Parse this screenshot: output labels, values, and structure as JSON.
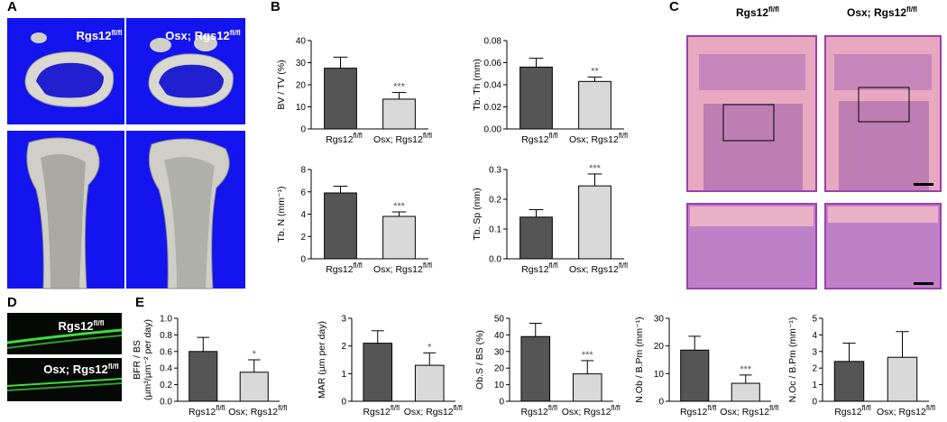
{
  "panels": {
    "A": {
      "letter": "A",
      "labels": [
        {
          "text": "Rgs12",
          "sup": "fl/fl"
        },
        {
          "text": "Osx; Rgs12",
          "sup": "fl/fl"
        }
      ]
    },
    "B": {
      "letter": "B"
    },
    "C": {
      "letter": "C",
      "labels": [
        {
          "text": "Rgs12",
          "sup": "fl/fl"
        },
        {
          "text": "Osx; Rgs12",
          "sup": "fl/fl"
        }
      ]
    },
    "D": {
      "letter": "D",
      "labels": [
        {
          "text": "Rgs12",
          "sup": "fl/fl"
        },
        {
          "text": "Osx; Rgs12",
          "sup": "fl/fl"
        }
      ]
    },
    "E": {
      "letter": "E"
    }
  },
  "chart_data": [
    {
      "type": "bar",
      "ylabel": [
        "BV / TV (%)"
      ],
      "categories": [
        "Rgs12",
        "Osx; Rgs12"
      ],
      "category_superscripts": [
        "fl/fl",
        "fl/fl"
      ],
      "values": [
        27.5,
        13.5
      ],
      "errors": [
        5,
        3
      ],
      "significance": [
        null,
        "***"
      ],
      "colors": [
        "#555555",
        "#d9d9d9"
      ],
      "ylim": [
        0,
        40
      ],
      "yticks": [
        0,
        10,
        20,
        30,
        40
      ]
    },
    {
      "type": "bar",
      "ylabel": [
        "Tb. Th (mm)"
      ],
      "categories": [
        "Rgs12",
        "Osx; Rgs12"
      ],
      "category_superscripts": [
        "fl/fl",
        "fl/fl"
      ],
      "values": [
        0.056,
        0.043
      ],
      "errors": [
        0.008,
        0.004
      ],
      "significance": [
        null,
        "**"
      ],
      "colors": [
        "#555555",
        "#d9d9d9"
      ],
      "ylim": [
        0,
        0.08
      ],
      "yticks": [
        {
          "value": 0,
          "label": "0.00"
        },
        0.02,
        0.04,
        0.06,
        0.08
      ]
    },
    {
      "type": "bar",
      "ylabel": [
        "Tb. N (mm⁻¹)"
      ],
      "categories": [
        "Rgs12",
        "Osx; Rgs12"
      ],
      "category_superscripts": [
        "fl/fl",
        "fl/fl"
      ],
      "values": [
        5.9,
        3.8
      ],
      "errors": [
        0.6,
        0.4
      ],
      "significance": [
        null,
        "***"
      ],
      "colors": [
        "#555555",
        "#d9d9d9"
      ],
      "ylim": [
        0,
        8
      ],
      "yticks": [
        0,
        2,
        4,
        6,
        8
      ]
    },
    {
      "type": "bar",
      "ylabel": [
        "Tb. Sp (mm)"
      ],
      "categories": [
        "Rgs12",
        "Osx; Rgs12"
      ],
      "category_superscripts": [
        "fl/fl",
        "fl/fl"
      ],
      "values": [
        0.14,
        0.245
      ],
      "errors": [
        0.025,
        0.04
      ],
      "significance": [
        null,
        "***"
      ],
      "colors": [
        "#555555",
        "#d9d9d9"
      ],
      "ylim": [
        0,
        0.3
      ],
      "yticks": [
        {
          "value": 0,
          "label": "0.0"
        },
        0.1,
        0.2,
        0.3
      ]
    },
    {
      "type": "bar",
      "ylabel": [
        "BFR / BS",
        "(µm³/µm⁻² per day)"
      ],
      "categories": [
        "Rgs12",
        "Osx; Rgs12"
      ],
      "category_superscripts": [
        "fl/fl",
        "fl/fl"
      ],
      "values": [
        0.6,
        0.35
      ],
      "errors": [
        0.17,
        0.15
      ],
      "significance": [
        null,
        "*"
      ],
      "colors": [
        "#555555",
        "#d9d9d9"
      ],
      "ylim": [
        0,
        1.0
      ],
      "yticks": [
        {
          "value": 0,
          "label": "0.0"
        },
        0.2,
        0.4,
        0.6,
        0.8,
        {
          "value": 1.0,
          "label": "1.0"
        }
      ]
    },
    {
      "type": "bar",
      "ylabel": [
        "MAR (µm per day)"
      ],
      "categories": [
        "Rgs12",
        "Osx; Rgs12"
      ],
      "category_superscripts": [
        "fl/fl",
        "fl/fl"
      ],
      "values": [
        2.1,
        1.3
      ],
      "errors": [
        0.45,
        0.45
      ],
      "significance": [
        null,
        "*"
      ],
      "colors": [
        "#555555",
        "#d9d9d9"
      ],
      "ylim": [
        0,
        3
      ],
      "yticks": [
        0,
        1,
        2,
        3
      ]
    },
    {
      "type": "bar",
      "ylabel": [
        "Ob.S / BS (%)"
      ],
      "categories": [
        "Rgs12",
        "Osx; Rgs12"
      ],
      "category_superscripts": [
        "fl/fl",
        "fl/fl"
      ],
      "values": [
        39,
        16.5
      ],
      "errors": [
        8,
        8
      ],
      "significance": [
        null,
        "***"
      ],
      "colors": [
        "#555555",
        "#d9d9d9"
      ],
      "ylim": [
        0,
        50
      ],
      "yticks": [
        0,
        10,
        20,
        30,
        40,
        50
      ]
    },
    {
      "type": "bar",
      "ylabel": [
        "N.Ob / B.Pm (mm⁻¹)"
      ],
      "categories": [
        "Rgs12",
        "Osx; Rgs12"
      ],
      "category_superscripts": [
        "fl/fl",
        "fl/fl"
      ],
      "values": [
        18.5,
        6.5
      ],
      "errors": [
        5,
        3
      ],
      "significance": [
        null,
        "***"
      ],
      "colors": [
        "#555555",
        "#d9d9d9"
      ],
      "ylim": [
        0,
        30
      ],
      "yticks": [
        0,
        10,
        20,
        30
      ]
    },
    {
      "type": "bar",
      "ylabel": [
        "N.Oc / B.Pm (mm⁻¹)"
      ],
      "categories": [
        "Rgs12",
        "Osx; Rgs12"
      ],
      "category_superscripts": [
        "fl/fl",
        "fl/fl"
      ],
      "values": [
        2.4,
        2.65
      ],
      "errors": [
        1.1,
        1.55
      ],
      "significance": [
        null,
        null
      ],
      "colors": [
        "#555555",
        "#d9d9d9"
      ],
      "ylim": [
        0,
        5
      ],
      "yticks": [
        0,
        1,
        2,
        3,
        4,
        5
      ]
    }
  ]
}
